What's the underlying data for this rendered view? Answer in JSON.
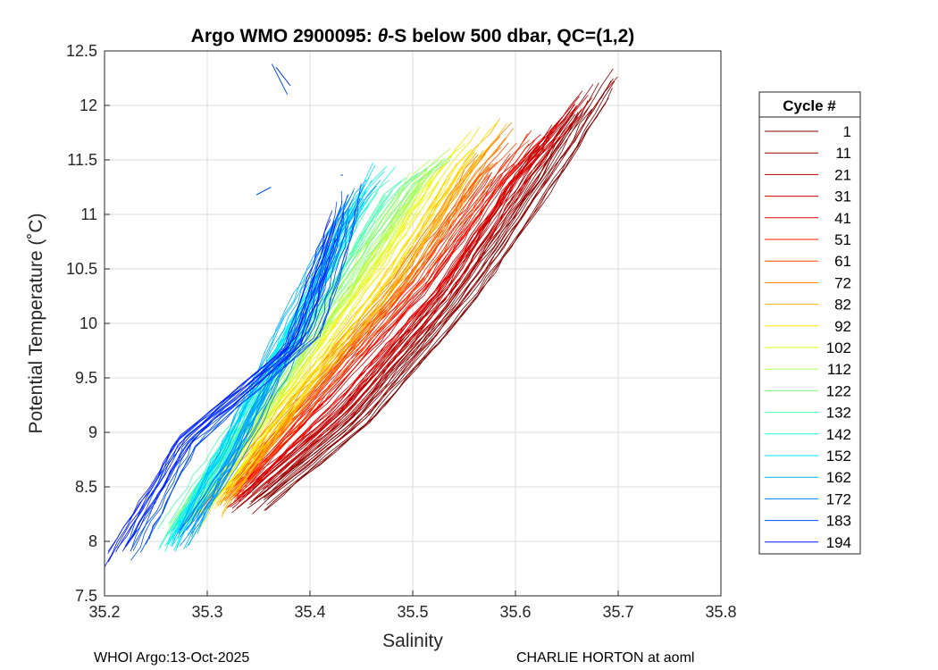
{
  "chart_data": {
    "type": "line",
    "title_prefix": "Argo WMO 2900095: ",
    "title_theta": "θ",
    "title_suffix": "-S below 500 dbar,  QC=(1,2)",
    "xlabel": "Salinity",
    "ylabel": "Potential Temperature (˚C)",
    "xlim": [
      35.2,
      35.8
    ],
    "ylim": [
      7.5,
      12.5
    ],
    "xticks": [
      35.2,
      35.3,
      35.4,
      35.5,
      35.6,
      35.7,
      35.8
    ],
    "xtick_labels": [
      "35.2",
      "35.3",
      "35.4",
      "35.5",
      "35.6",
      "35.7",
      "35.8"
    ],
    "yticks": [
      7.5,
      8,
      8.5,
      9,
      9.5,
      10,
      10.5,
      11,
      11.5,
      12,
      12.5
    ],
    "ytick_labels": [
      "7.5",
      "8",
      "8.5",
      "9",
      "9.5",
      "10",
      "10.5",
      "11",
      "11.5",
      "12",
      "12.5"
    ],
    "grid": true,
    "legend": {
      "title": "Cycle #",
      "position": "right-outside",
      "entries": [
        {
          "label": "1",
          "color": "#800000"
        },
        {
          "label": "11",
          "color": "#990000"
        },
        {
          "label": "21",
          "color": "#b30000"
        },
        {
          "label": "31",
          "color": "#cc0000"
        },
        {
          "label": "41",
          "color": "#e60000"
        },
        {
          "label": "51",
          "color": "#ff1a00"
        },
        {
          "label": "61",
          "color": "#ff4d00"
        },
        {
          "label": "72",
          "color": "#ff8000"
        },
        {
          "label": "82",
          "color": "#ffb300"
        },
        {
          "label": "92",
          "color": "#ffe600"
        },
        {
          "label": "102",
          "color": "#e6ff1a"
        },
        {
          "label": "112",
          "color": "#b3ff4d"
        },
        {
          "label": "122",
          "color": "#80ff80"
        },
        {
          "label": "132",
          "color": "#4dffb3"
        },
        {
          "label": "142",
          "color": "#1affe6"
        },
        {
          "label": "152",
          "color": "#00e6ff"
        },
        {
          "label": "162",
          "color": "#00b3ff"
        },
        {
          "label": "172",
          "color": "#0080ff"
        },
        {
          "label": "183",
          "color": "#004dff"
        },
        {
          "label": "194",
          "color": "#001aff"
        }
      ]
    },
    "series": [
      {
        "cycle": "1",
        "color": "#800000",
        "s": [
          35.335,
          35.45,
          35.55,
          35.63,
          35.7
        ],
        "t": [
          8.2,
          9.1,
          10.2,
          11.3,
          12.35
        ]
      },
      {
        "cycle": "11",
        "color": "#990000",
        "s": [
          35.33,
          35.44,
          35.54,
          35.62,
          35.69
        ],
        "t": [
          8.25,
          9.1,
          10.2,
          11.3,
          12.3
        ]
      },
      {
        "cycle": "21",
        "color": "#b30000",
        "s": [
          35.33,
          35.44,
          35.54,
          35.61,
          35.68
        ],
        "t": [
          8.3,
          9.2,
          10.3,
          11.35,
          12.2
        ]
      },
      {
        "cycle": "31",
        "color": "#cc0000",
        "s": [
          35.32,
          35.43,
          35.53,
          35.6,
          35.67
        ],
        "t": [
          8.3,
          9.2,
          10.3,
          11.3,
          12.1
        ]
      },
      {
        "cycle": "41",
        "color": "#e60000",
        "s": [
          35.32,
          35.42,
          35.52,
          35.59,
          35.65
        ],
        "t": [
          8.35,
          9.3,
          10.35,
          11.3,
          11.9
        ]
      },
      {
        "cycle": "51",
        "color": "#ff1a00",
        "s": [
          35.31,
          35.41,
          35.51,
          35.58,
          35.62
        ],
        "t": [
          8.3,
          9.35,
          10.4,
          11.3,
          11.8
        ]
      },
      {
        "cycle": "61",
        "color": "#ff4d00",
        "s": [
          35.31,
          35.4,
          35.5,
          35.57,
          35.61
        ],
        "t": [
          8.3,
          9.3,
          10.4,
          11.35,
          11.75
        ]
      },
      {
        "cycle": "72",
        "color": "#ff8000",
        "s": [
          35.3,
          35.39,
          35.49,
          35.56,
          35.6
        ],
        "t": [
          8.25,
          9.3,
          10.4,
          11.4,
          11.85
        ]
      },
      {
        "cycle": "82",
        "color": "#ffb300",
        "s": [
          35.3,
          35.38,
          35.48,
          35.55,
          35.59
        ],
        "t": [
          8.2,
          9.25,
          10.4,
          11.45,
          11.9
        ]
      },
      {
        "cycle": "92",
        "color": "#ffe600",
        "s": [
          35.29,
          35.38,
          35.47,
          35.54,
          35.58
        ],
        "t": [
          8.2,
          9.3,
          10.45,
          11.45,
          11.95
        ]
      },
      {
        "cycle": "102",
        "color": "#e6ff1a",
        "s": [
          35.28,
          35.37,
          35.46,
          35.53,
          35.56
        ],
        "t": [
          8.1,
          9.3,
          10.5,
          11.5,
          11.75
        ]
      },
      {
        "cycle": "112",
        "color": "#b3ff4d",
        "s": [
          35.27,
          35.36,
          35.45,
          35.51,
          35.55
        ],
        "t": [
          8.05,
          9.3,
          10.5,
          11.4,
          11.7
        ]
      },
      {
        "cycle": "122",
        "color": "#80ff80",
        "s": [
          35.26,
          35.35,
          35.44,
          35.5,
          35.55
        ],
        "t": [
          8.0,
          9.25,
          10.5,
          11.3,
          11.65
        ]
      },
      {
        "cycle": "132",
        "color": "#4dffb3",
        "s": [
          35.25,
          35.34,
          35.42,
          35.47,
          35.52
        ],
        "t": [
          7.95,
          9.2,
          10.4,
          11.2,
          11.55
        ]
      },
      {
        "cycle": "142",
        "color": "#1affe6",
        "s": [
          35.26,
          35.33,
          35.4,
          35.45,
          35.48
        ],
        "t": [
          7.9,
          9.0,
          10.2,
          11.1,
          11.45
        ]
      },
      {
        "cycle": "152",
        "color": "#00e6ff",
        "s": [
          35.26,
          35.32,
          35.39,
          35.44,
          35.47
        ],
        "t": [
          7.9,
          8.9,
          10.1,
          11.0,
          11.5
        ]
      },
      {
        "cycle": "162",
        "color": "#00b3ff",
        "s": [
          35.27,
          35.32,
          35.38,
          35.43,
          35.46
        ],
        "t": [
          7.9,
          8.8,
          10.0,
          10.9,
          11.35
        ]
      },
      {
        "cycle": "172",
        "color": "#0080ff",
        "s": [
          35.27,
          35.33,
          35.39,
          35.43,
          35.45
        ],
        "t": [
          7.95,
          8.8,
          9.9,
          10.9,
          11.3
        ]
      },
      {
        "cycle": "183",
        "color": "#004dff",
        "s": [
          35.22,
          35.28,
          35.34,
          35.4,
          35.43,
          35.44
        ],
        "t": [
          7.8,
          8.9,
          9.4,
          9.9,
          10.8,
          11.3
        ]
      },
      {
        "cycle": "194",
        "color": "#001aff",
        "s": [
          35.2,
          35.28,
          35.35,
          35.385,
          35.41,
          35.435
        ],
        "t": [
          7.72,
          8.95,
          9.5,
          9.8,
          10.5,
          11.2
        ]
      }
    ],
    "fragments": [
      {
        "color": "#0050ff",
        "s": [
          35.363,
          35.378
        ],
        "t": [
          12.38,
          12.1
        ]
      },
      {
        "color": "#0030ff",
        "s": [
          35.367,
          35.381
        ],
        "t": [
          12.35,
          12.18
        ]
      },
      {
        "color": "#0050ff",
        "s": [
          35.348,
          35.362
        ],
        "t": [
          11.18,
          11.25
        ]
      },
      {
        "color": "#0030ff",
        "s": [
          35.43,
          35.432
        ],
        "t": [
          11.36,
          11.36
        ]
      }
    ]
  },
  "footer": {
    "left": "WHOI Argo:13-Oct-2025",
    "right": "CHARLIE HORTON at aoml"
  }
}
